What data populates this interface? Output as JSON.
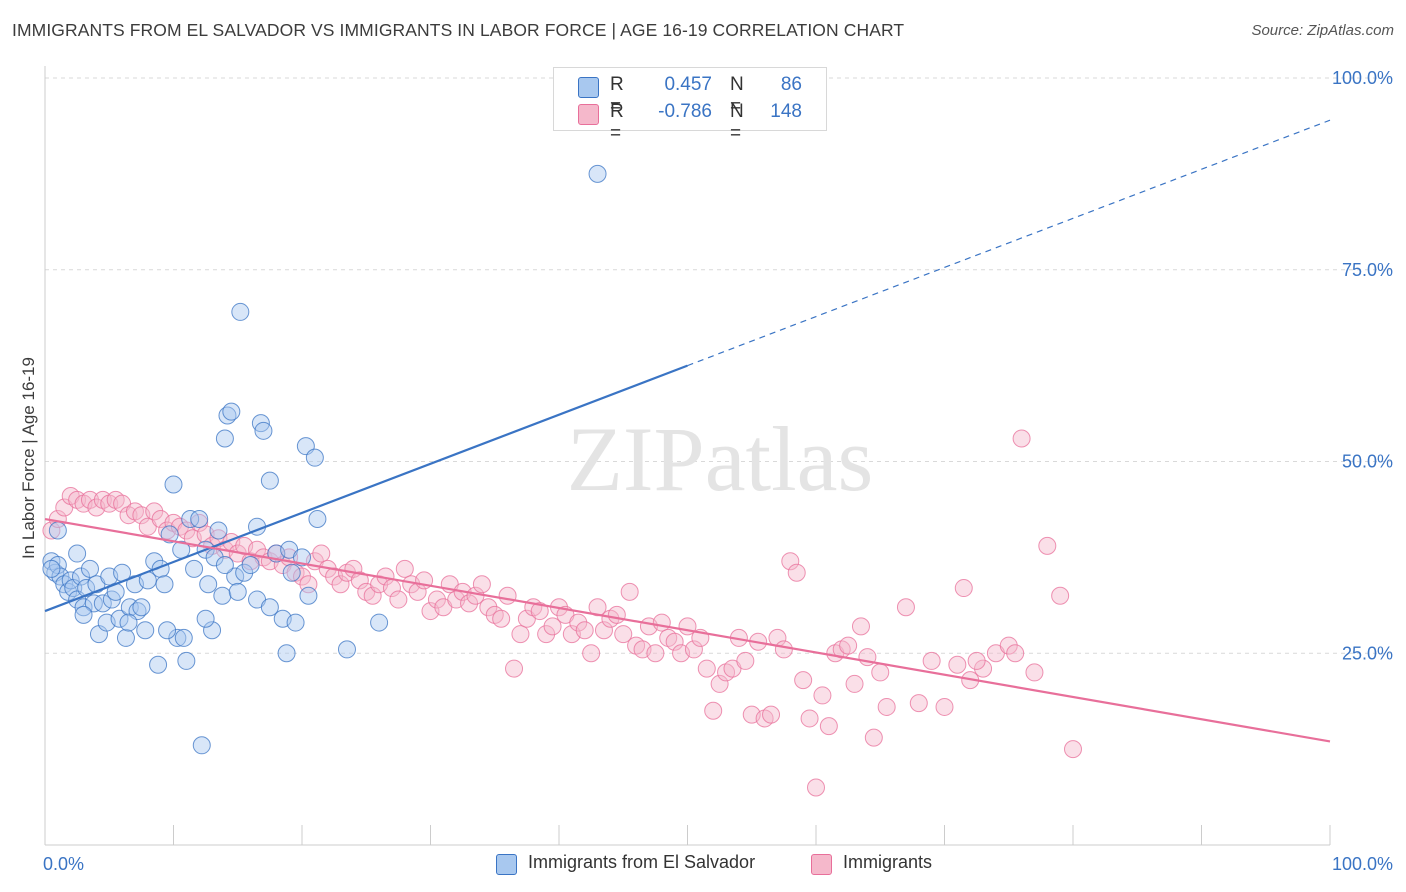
{
  "title": "IMMIGRANTS FROM EL SALVADOR VS IMMIGRANTS IN LABOR FORCE | AGE 16-19 CORRELATION CHART",
  "source": "Source: ZipAtlas.com",
  "watermark": "ZIPatlas",
  "colors": {
    "blue": "#3a74c4",
    "blue_fill": "#a8c8ef",
    "pink": "#e86f9a",
    "pink_fill": "#f5b8cb",
    "grid": "#d9d9d9",
    "axis_label": "#3a74c4"
  },
  "legend_top": {
    "rows": [
      {
        "r_label": "R =",
        "r_value": "0.457",
        "n_label": "N =",
        "n_value": "86",
        "color": "blue"
      },
      {
        "r_label": "R =",
        "r_value": "-0.786",
        "n_label": "N =",
        "n_value": "148",
        "color": "pink"
      }
    ]
  },
  "legend_bottom": [
    {
      "label": "Immigrants from El Salvador",
      "color": "blue"
    },
    {
      "label": "Immigrants",
      "color": "pink"
    }
  ],
  "chart_data": {
    "type": "scatter",
    "title": "IMMIGRANTS FROM EL SALVADOR VS IMMIGRANTS IN LABOR FORCE | AGE 16-19 CORRELATION CHART",
    "xlabel": "",
    "ylabel": "In Labor Force | Age 16-19",
    "xlim": [
      0,
      100
    ],
    "ylim": [
      0,
      100
    ],
    "x_tick_labels": [
      "0.0%",
      "100.0%"
    ],
    "y_tick_labels": [
      "25.0%",
      "50.0%",
      "75.0%",
      "100.0%"
    ],
    "y_ticks": [
      25,
      50,
      75,
      100
    ],
    "grid": true,
    "legend_position": "top-center",
    "series": [
      {
        "name": "Immigrants from El Salvador",
        "color": "blue",
        "trend": {
          "x0": 0,
          "y0": 30.5,
          "x1": 50,
          "y1": 62.5,
          "dashed_to_x": 100,
          "dashed_to_y": 94.5
        },
        "points": [
          [
            0.5,
            37
          ],
          [
            0.8,
            35.5
          ],
          [
            1,
            36.5
          ],
          [
            1.2,
            35
          ],
          [
            1.5,
            34
          ],
          [
            1.8,
            33
          ],
          [
            2,
            34.5
          ],
          [
            2.2,
            33.5
          ],
          [
            2.5,
            32
          ],
          [
            2.8,
            35
          ],
          [
            3,
            31
          ],
          [
            3.2,
            33.5
          ],
          [
            3.5,
            36
          ],
          [
            3.8,
            31.5
          ],
          [
            4,
            34
          ],
          [
            4.2,
            27.5
          ],
          [
            4.5,
            31.5
          ],
          [
            4.8,
            29
          ],
          [
            5,
            35
          ],
          [
            5.2,
            32
          ],
          [
            5.5,
            33
          ],
          [
            5.8,
            29.5
          ],
          [
            6,
            35.5
          ],
          [
            6.3,
            27
          ],
          [
            6.6,
            31
          ],
          [
            7,
            34
          ],
          [
            7.2,
            30.5
          ],
          [
            7.5,
            31
          ],
          [
            7.8,
            28
          ],
          [
            8,
            34.5
          ],
          [
            8.5,
            37
          ],
          [
            8.8,
            23.5
          ],
          [
            9,
            36
          ],
          [
            9.3,
            34
          ],
          [
            9.7,
            40.5
          ],
          [
            10,
            47
          ],
          [
            10.3,
            27
          ],
          [
            10.6,
            38.5
          ],
          [
            10.8,
            27
          ],
          [
            11,
            24
          ],
          [
            11.3,
            42.5
          ],
          [
            11.6,
            36
          ],
          [
            12,
            42.5
          ],
          [
            12.2,
            13
          ],
          [
            12.5,
            38.5
          ],
          [
            12.7,
            34
          ],
          [
            13,
            28
          ],
          [
            13.2,
            37.5
          ],
          [
            13.5,
            41
          ],
          [
            13.8,
            32.5
          ],
          [
            14,
            53
          ],
          [
            14.2,
            56
          ],
          [
            14.5,
            56.5
          ],
          [
            14.8,
            35
          ],
          [
            15,
            33
          ],
          [
            15.2,
            69.5
          ],
          [
            15.5,
            35.5
          ],
          [
            16,
            36.5
          ],
          [
            16.5,
            41.5
          ],
          [
            16.8,
            55
          ],
          [
            17,
            54
          ],
          [
            17.5,
            47.5
          ],
          [
            18,
            38
          ],
          [
            18.5,
            29.5
          ],
          [
            18.8,
            25
          ],
          [
            19,
            38.5
          ],
          [
            19.5,
            29
          ],
          [
            20,
            37.5
          ],
          [
            20.3,
            52
          ],
          [
            20.5,
            32.5
          ],
          [
            21,
            50.5
          ],
          [
            21.2,
            42.5
          ],
          [
            23.5,
            25.5
          ],
          [
            26,
            29
          ],
          [
            43,
            87.5
          ],
          [
            1,
            41
          ],
          [
            2.5,
            38
          ],
          [
            3,
            30
          ],
          [
            6.5,
            29
          ],
          [
            9.5,
            28
          ],
          [
            12.5,
            29.5
          ],
          [
            14,
            36.5
          ],
          [
            16.5,
            32
          ],
          [
            17.5,
            31
          ],
          [
            19.2,
            35.5
          ],
          [
            0.5,
            36
          ]
        ]
      },
      {
        "name": "Immigrants",
        "color": "pink",
        "trend": {
          "x0": 0,
          "y0": 42.5,
          "x1": 100,
          "y1": 13.5
        },
        "points": [
          [
            0.5,
            41
          ],
          [
            1,
            42.5
          ],
          [
            1.5,
            44
          ],
          [
            2,
            45.5
          ],
          [
            2.5,
            45
          ],
          [
            3,
            44.5
          ],
          [
            3.5,
            45
          ],
          [
            4,
            44
          ],
          [
            4.5,
            45
          ],
          [
            5,
            44.5
          ],
          [
            5.5,
            45
          ],
          [
            6,
            44.5
          ],
          [
            6.5,
            43
          ],
          [
            7,
            43.5
          ],
          [
            7.5,
            43
          ],
          [
            8,
            41.5
          ],
          [
            8.5,
            43.5
          ],
          [
            9,
            42.5
          ],
          [
            9.5,
            41
          ],
          [
            10,
            42
          ],
          [
            10.5,
            41.5
          ],
          [
            11,
            41
          ],
          [
            11.5,
            40
          ],
          [
            12,
            42
          ],
          [
            12.5,
            40.5
          ],
          [
            13,
            39
          ],
          [
            13.5,
            40
          ],
          [
            14,
            38.5
          ],
          [
            14.5,
            39.5
          ],
          [
            15,
            38
          ],
          [
            15.5,
            39
          ],
          [
            16,
            37
          ],
          [
            16.5,
            38.5
          ],
          [
            17,
            37.5
          ],
          [
            17.5,
            37
          ],
          [
            18,
            38
          ],
          [
            18.5,
            36.5
          ],
          [
            19,
            37.5
          ],
          [
            19.5,
            35.5
          ],
          [
            20,
            35
          ],
          [
            20.5,
            34
          ],
          [
            21,
            37
          ],
          [
            21.5,
            38
          ],
          [
            22,
            36
          ],
          [
            22.5,
            35
          ],
          [
            23,
            34
          ],
          [
            23.5,
            35.5
          ],
          [
            24,
            36
          ],
          [
            24.5,
            34.5
          ],
          [
            25,
            33
          ],
          [
            25.5,
            32.5
          ],
          [
            26,
            34
          ],
          [
            26.5,
            35
          ],
          [
            27,
            33.5
          ],
          [
            27.5,
            32
          ],
          [
            28,
            36
          ],
          [
            28.5,
            34
          ],
          [
            29,
            33
          ],
          [
            29.5,
            34.5
          ],
          [
            30,
            30.5
          ],
          [
            30.5,
            32
          ],
          [
            31,
            31
          ],
          [
            31.5,
            34
          ],
          [
            32,
            32
          ],
          [
            32.5,
            33
          ],
          [
            33,
            31.5
          ],
          [
            33.5,
            32.5
          ],
          [
            34,
            34
          ],
          [
            34.5,
            31
          ],
          [
            35,
            30
          ],
          [
            35.5,
            29.5
          ],
          [
            36,
            32.5
          ],
          [
            36.5,
            23
          ],
          [
            37,
            27.5
          ],
          [
            37.5,
            29.5
          ],
          [
            38,
            31
          ],
          [
            38.5,
            30.5
          ],
          [
            39,
            27.5
          ],
          [
            39.5,
            28.5
          ],
          [
            40,
            31
          ],
          [
            40.5,
            30
          ],
          [
            41,
            27.5
          ],
          [
            41.5,
            29
          ],
          [
            42,
            28
          ],
          [
            42.5,
            25
          ],
          [
            43,
            31
          ],
          [
            43.5,
            28
          ],
          [
            44,
            29.5
          ],
          [
            44.5,
            30
          ],
          [
            45,
            27.5
          ],
          [
            45.5,
            33
          ],
          [
            46,
            26
          ],
          [
            46.5,
            25.5
          ],
          [
            47,
            28.5
          ],
          [
            47.5,
            25
          ],
          [
            48,
            29
          ],
          [
            48.5,
            27
          ],
          [
            49,
            26.5
          ],
          [
            49.5,
            25
          ],
          [
            50,
            28.5
          ],
          [
            50.5,
            25.5
          ],
          [
            51,
            27
          ],
          [
            51.5,
            23
          ],
          [
            52,
            17.5
          ],
          [
            52.5,
            21
          ],
          [
            53,
            22.5
          ],
          [
            53.5,
            23
          ],
          [
            54,
            27
          ],
          [
            54.5,
            24
          ],
          [
            55,
            17
          ],
          [
            55.5,
            26.5
          ],
          [
            56,
            16.5
          ],
          [
            56.5,
            17
          ],
          [
            57,
            27
          ],
          [
            57.5,
            25.5
          ],
          [
            58,
            37
          ],
          [
            58.5,
            35.5
          ],
          [
            59,
            21.5
          ],
          [
            59.5,
            16.5
          ],
          [
            60,
            7.5
          ],
          [
            60.5,
            19.5
          ],
          [
            61,
            15.5
          ],
          [
            61.5,
            25
          ],
          [
            62,
            25.5
          ],
          [
            62.5,
            26
          ],
          [
            63,
            21
          ],
          [
            63.5,
            28.5
          ],
          [
            64,
            24.5
          ],
          [
            64.5,
            14
          ],
          [
            65,
            22.5
          ],
          [
            65.5,
            18
          ],
          [
            67,
            31
          ],
          [
            68,
            18.5
          ],
          [
            69,
            24
          ],
          [
            70,
            18
          ],
          [
            71,
            23.5
          ],
          [
            72,
            21.5
          ],
          [
            73,
            23
          ],
          [
            74,
            25
          ],
          [
            75,
            26
          ],
          [
            76,
            53
          ],
          [
            77,
            22.5
          ],
          [
            78,
            39
          ],
          [
            79,
            32.5
          ],
          [
            80,
            12.5
          ],
          [
            71.5,
            33.5
          ],
          [
            72.5,
            24
          ],
          [
            75.5,
            25
          ]
        ]
      }
    ]
  }
}
